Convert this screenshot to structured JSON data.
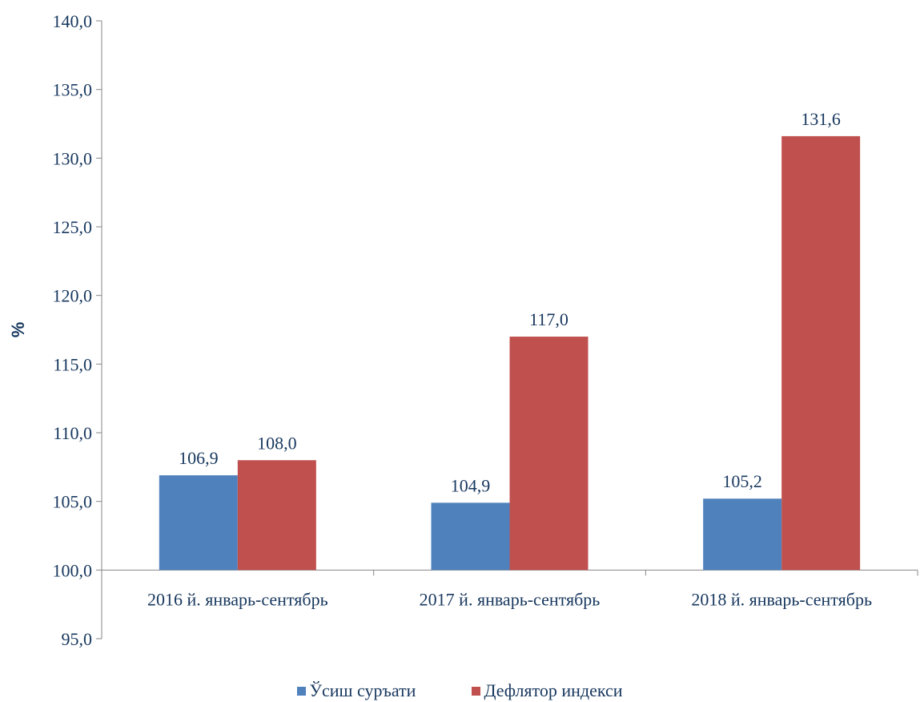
{
  "chart_data": {
    "type": "bar",
    "title": "",
    "xlabel": "",
    "ylabel": "%",
    "ylim": [
      95,
      140
    ],
    "baseline": 100,
    "yticks": [
      "95,0",
      "100,0",
      "105,0",
      "110,0",
      "115,0",
      "120,0",
      "125,0",
      "130,0",
      "135,0",
      "140,0"
    ],
    "categories": [
      "2016 й. январь-сентябрь",
      "2017 й. январь-сентябрь",
      "2018 й. январь-сентябрь"
    ],
    "series": [
      {
        "name": "Ўсиш суръати",
        "color": "#4f81bd",
        "values": [
          106.9,
          104.9,
          105.2
        ],
        "labels": [
          "106,9",
          "104,9",
          "105,2"
        ]
      },
      {
        "name": "Дефлятор индекси",
        "color": "#c0504d",
        "values": [
          108.0,
          117.0,
          131.6
        ],
        "labels": [
          "108,0",
          "117,0",
          "131,6"
        ]
      }
    ],
    "grid": false,
    "legend_position": "bottom"
  }
}
